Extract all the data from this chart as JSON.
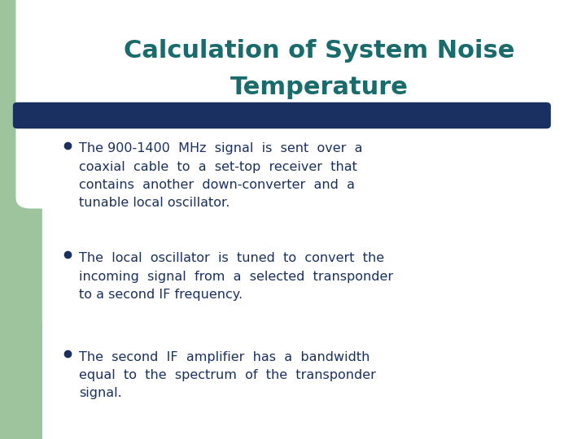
{
  "title_line1": "Calculation of System Noise",
  "title_line2": "Temperature",
  "title_color": "#1a6b6b",
  "title_fontsize": 22,
  "title_fontweight": "bold",
  "bg_color": "#ffffff",
  "left_bar_color": "#9dc49d",
  "divider_color": "#1a3060",
  "bullet_color": "#1a3060",
  "text_color": "#1a3060",
  "text_fontsize": 11.5,
  "bullet_points": [
    "The 900-1400  MHz  signal  is  sent  over  a\ncoaxial  cable  to  a  set-top  receiver  that\ncontains  another  down-converter  and  a\ntunable local oscillator.",
    "The  local  oscillator  is  tuned  to  convert  the\nincoming  signal  from  a  selected  transponder\nto a second IF frequency.",
    "The  second  IF  amplifier  has  a  bandwidth\nequal  to  the  spectrum  of  the  transponder\nsignal."
  ]
}
